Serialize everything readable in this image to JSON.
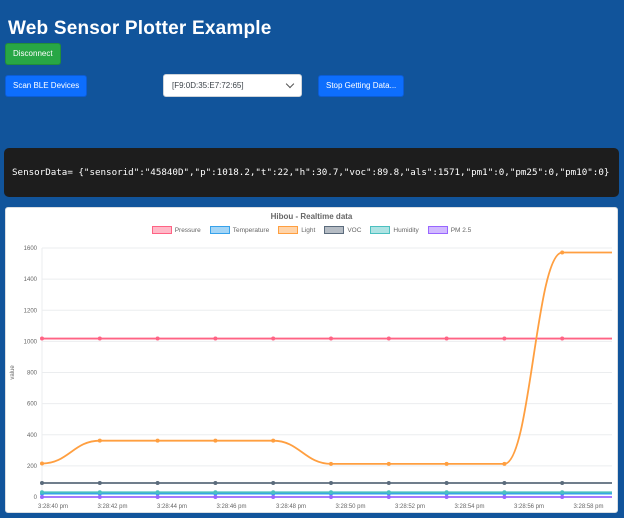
{
  "page": {
    "title": "Web Sensor Plotter Example"
  },
  "controls": {
    "disconnect_label": "Disconnect",
    "scan_label": "Scan BLE Devices",
    "device_select_value": "[F9:0D:35:E7:72:65]",
    "stop_label": "Stop Getting Data..."
  },
  "console": {
    "text": "SensorData= {\"sensorid\":\"45840D\",\"p\":1018.2,\"t\":22,\"h\":30.7,\"voc\":89.8,\"als\":1571,\"pm1\":0,\"pm25\":0,\"pm10\":0}"
  },
  "colors": {
    "page_background": "#11549b",
    "success_button": "#28a745",
    "primary_button": "#0d6efd",
    "console_background": "#1d1d1d",
    "chart_text": "#666666"
  },
  "chart_data": {
    "type": "line",
    "title": "Hibou - Realtime data",
    "ylabel": "value",
    "ylim": [
      0,
      1600
    ],
    "y_ticks": [
      0,
      200,
      400,
      600,
      800,
      1000,
      1200,
      1400,
      1600
    ],
    "x_tick_labels": [
      "3:28:40 pm",
      "3:28:42 pm",
      "3:28:44 pm",
      "3:28:46 pm",
      "3:28:48 pm",
      "3:28:50 pm",
      "3:28:52 pm",
      "3:28:54 pm",
      "3:28:56 pm",
      "3:28:58 pm"
    ],
    "legend_position": "top",
    "grid": "horizontal",
    "series": [
      {
        "name": "Pressure",
        "color": "#ff6384",
        "fill_color": "rgba(255,99,132,0.45)",
        "values": [
          1018.2,
          1018.2,
          1018.2,
          1018.2,
          1018.2,
          1018.2,
          1018.2,
          1018.2,
          1018.2,
          1018.2
        ]
      },
      {
        "name": "Temperature",
        "color": "#36a2eb",
        "fill_color": "rgba(54,162,235,0.45)",
        "values": [
          22,
          22,
          22,
          22,
          22,
          22,
          22,
          22,
          22,
          22
        ]
      },
      {
        "name": "Light",
        "color": "#ff9f40",
        "fill_color": "rgba(255,159,64,0.45)",
        "values": [
          215,
          362,
          362,
          362,
          362,
          213,
          213,
          213,
          213,
          1571
        ]
      },
      {
        "name": "VOC",
        "color": "#5b6b7c",
        "fill_color": "rgba(91,107,124,0.45)",
        "values": [
          89.8,
          89.8,
          89.8,
          89.8,
          89.8,
          89.8,
          89.8,
          89.8,
          89.8,
          89.8
        ]
      },
      {
        "name": "Humidity",
        "color": "#4bc0c0",
        "fill_color": "rgba(75,192,192,0.45)",
        "values": [
          30.7,
          30.7,
          30.7,
          30.7,
          30.7,
          30.7,
          30.7,
          30.7,
          30.7,
          30.7
        ]
      },
      {
        "name": "PM 2.5",
        "color": "#9966ff",
        "fill_color": "rgba(153,102,255,0.45)",
        "values": [
          0,
          0,
          0,
          0,
          0,
          0,
          0,
          0,
          0,
          0
        ]
      }
    ]
  }
}
